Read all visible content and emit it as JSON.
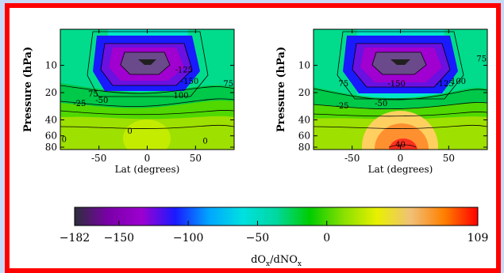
{
  "chart_data": [
    {
      "type": "heatmap",
      "panel": "left",
      "xlabel": "Lat (degrees)",
      "ylabel": "Pressure (hPa)",
      "x_ticks": [
        "-50",
        "0",
        "50"
      ],
      "y_ticks": [
        "10",
        "20",
        "40",
        "60",
        "80"
      ],
      "xlim": [
        -90,
        90
      ],
      "ylim_hPa": [
        85,
        4
      ],
      "y_scale": "log",
      "contour_labels": [
        {
          "text": "75",
          "lat": -56,
          "p": 22
        },
        {
          "text": "-125",
          "lat": 38,
          "p": 12
        },
        {
          "text": "-150",
          "lat": 44,
          "p": 16
        },
        {
          "text": "100",
          "lat": 35,
          "p": 23
        },
        {
          "text": "75",
          "lat": 84,
          "p": 17
        },
        {
          "text": "-50",
          "lat": -47,
          "p": 26
        },
        {
          "text": "-25",
          "lat": -70,
          "p": 28
        },
        {
          "text": "0",
          "lat": -18,
          "p": 57
        },
        {
          "text": "0",
          "lat": 60,
          "p": 73
        },
        {
          "text": "0",
          "lat": -86,
          "p": 70
        }
      ]
    },
    {
      "type": "heatmap",
      "panel": "right",
      "xlabel": "Lat (degrees)",
      "ylabel": "Pressure (hPa)",
      "x_ticks": [
        "-50",
        "0",
        "50"
      ],
      "y_ticks": [
        "10",
        "20",
        "40",
        "60",
        "80"
      ],
      "xlim": [
        -90,
        90
      ],
      "ylim_hPa": [
        85,
        4
      ],
      "y_scale": "log",
      "contour_labels": [
        {
          "text": "75",
          "lat": -59,
          "p": 17
        },
        {
          "text": "-150",
          "lat": -4,
          "p": 17
        },
        {
          "text": "-125",
          "lat": 46,
          "p": 17
        },
        {
          "text": "100",
          "lat": 60,
          "p": 16
        },
        {
          "text": "75",
          "lat": 84,
          "p": 9
        },
        {
          "text": "-50",
          "lat": -20,
          "p": 28
        },
        {
          "text": "-25",
          "lat": -60,
          "p": 30
        },
        {
          "text": "40",
          "lat": 0,
          "p": 80
        }
      ]
    }
  ],
  "colorbar": {
    "label_main": "dO",
    "label_sub1": "x",
    "label_mid": "/dNO",
    "label_sub2": "x",
    "min": -182,
    "max": 109,
    "ticks": [
      "-182",
      "-150",
      "-100",
      "-50",
      "0",
      "109"
    ],
    "colors": [
      "#2e2e3c",
      "#7a00a8",
      "#9d00d0",
      "#1a1aff",
      "#00a6ff",
      "#00e0e0",
      "#00d8a0",
      "#00cc00",
      "#88e000",
      "#e8f000",
      "#f0c078",
      "#ff8000",
      "#ff0000"
    ]
  }
}
